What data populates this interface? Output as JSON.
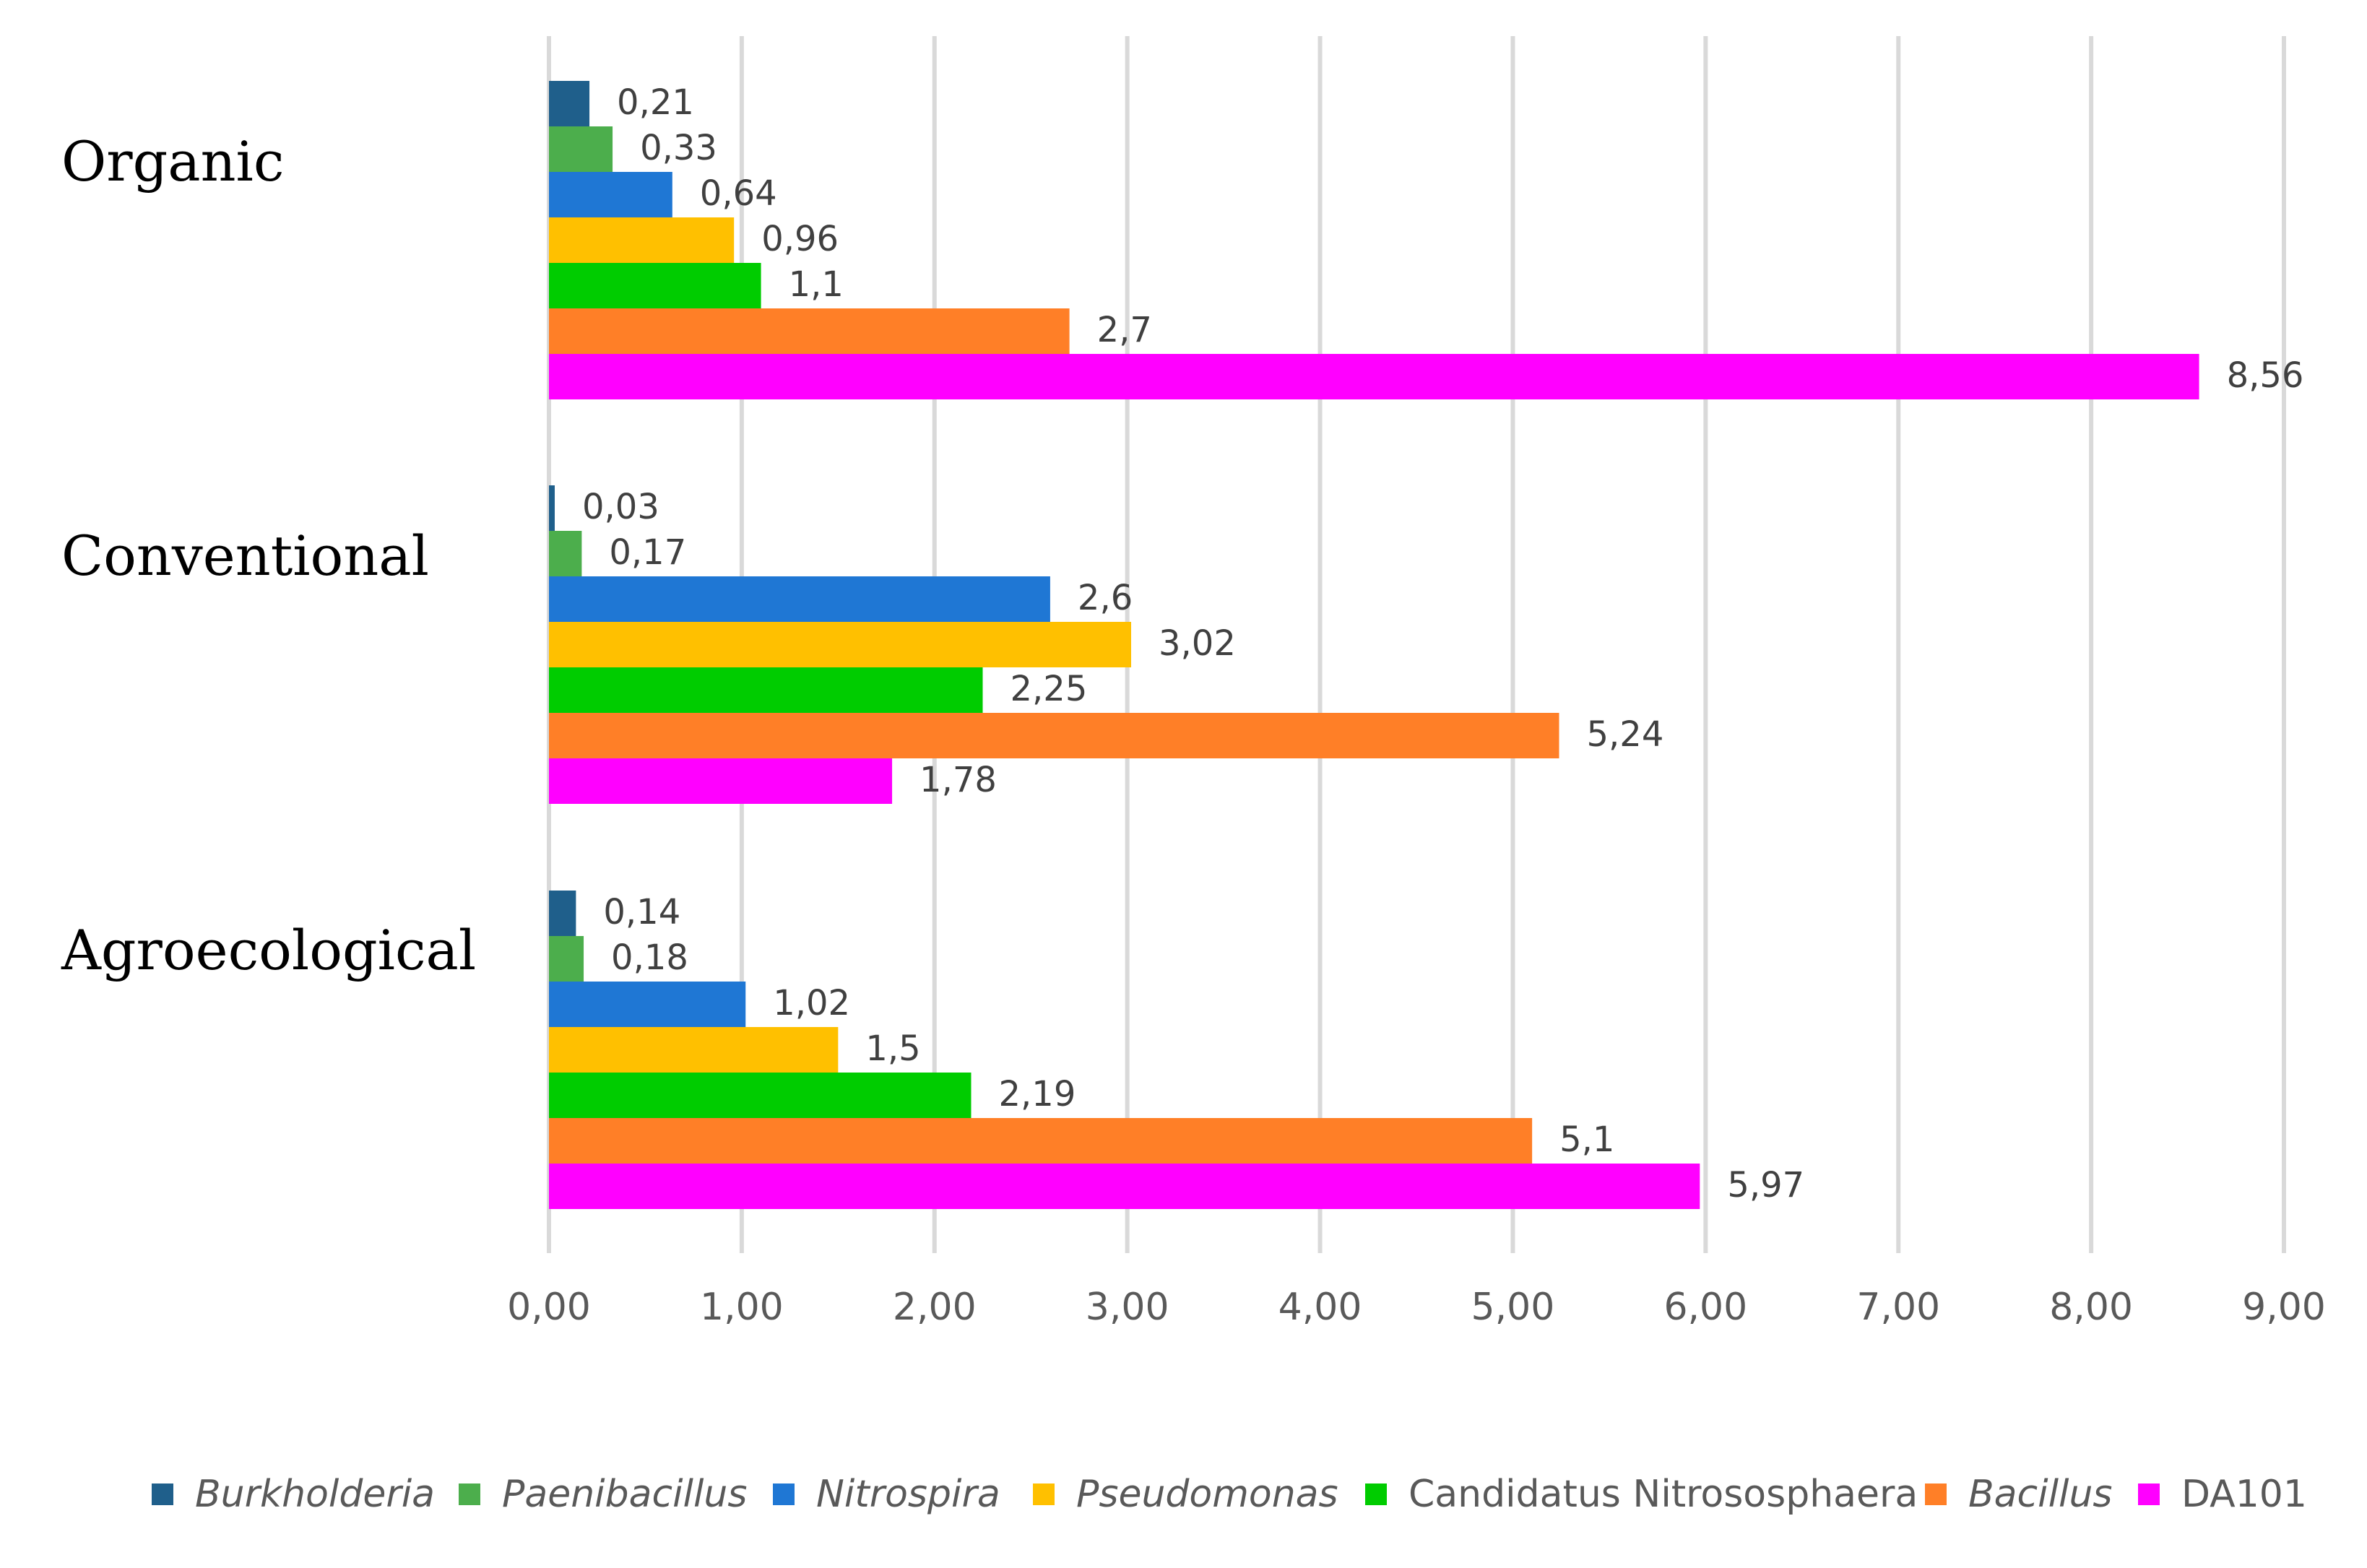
{
  "chart_data": {
    "type": "bar",
    "orientation": "horizontal",
    "title": "",
    "xlabel": "",
    "ylabel": "",
    "xlim": [
      0,
      9
    ],
    "grid": true,
    "legend_position": "bottom",
    "x_ticks": [
      "0,00",
      "1,00",
      "2,00",
      "3,00",
      "4,00",
      "5,00",
      "6,00",
      "7,00",
      "8,00",
      "9,00"
    ],
    "categories": [
      "Organic",
      "Conventional",
      "Agroecological"
    ],
    "series": [
      {
        "name": "Burkholderia",
        "italic": true,
        "color": "#1f5f8b",
        "values": [
          0.21,
          0.03,
          0.14
        ],
        "labels": [
          "0,21",
          "0,03",
          "0,14"
        ]
      },
      {
        "name": "Paenibacillus",
        "italic": true,
        "color": "#4cae4c",
        "values": [
          0.33,
          0.17,
          0.18
        ],
        "labels": [
          "0,33",
          "0,17",
          "0,18"
        ]
      },
      {
        "name": "Nitrospira",
        "italic": true,
        "color": "#1f77d4",
        "values": [
          0.64,
          2.6,
          1.02
        ],
        "labels": [
          "0,64",
          "2,6",
          "1,02"
        ]
      },
      {
        "name": "Pseudomonas",
        "italic": true,
        "color": "#ffc000",
        "values": [
          0.96,
          3.02,
          1.5
        ],
        "labels": [
          "0,96",
          "3,02",
          "1,5"
        ]
      },
      {
        "name": "Candidatus Nitrososphaera",
        "italic": false,
        "color": "#00cc00",
        "values": [
          1.1,
          2.25,
          2.19
        ],
        "labels": [
          "1,1",
          "2,25",
          "2,19"
        ]
      },
      {
        "name": "Bacillus",
        "italic": true,
        "color": "#ff7f27",
        "values": [
          2.7,
          5.24,
          5.1
        ],
        "labels": [
          "2,7",
          "5,24",
          "5,1"
        ]
      },
      {
        "name": "DA101",
        "italic": false,
        "color": "#ff00ff",
        "values": [
          8.56,
          1.78,
          5.97
        ],
        "labels": [
          "8,56",
          "1,78",
          "5,97"
        ]
      }
    ]
  }
}
